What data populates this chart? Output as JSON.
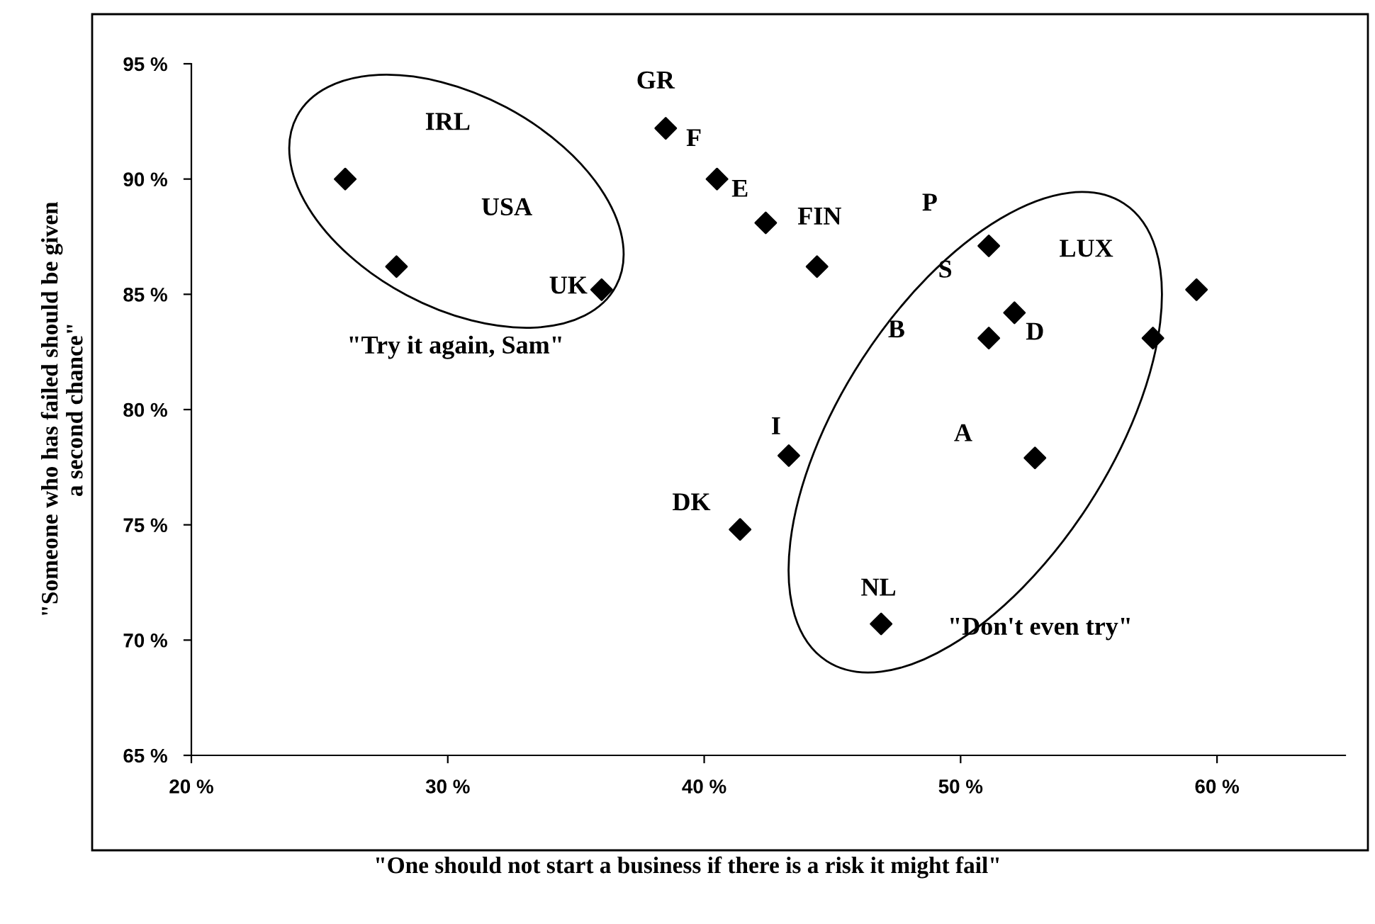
{
  "chart_data": {
    "type": "scatter",
    "xlabel": "\"One should not start a business if there is a risk it might fail\"",
    "ylabel": "\"Someone who has failed should be given\na second chance\"",
    "x": [
      26,
      28,
      36,
      38.5,
      40.5,
      42.4,
      44.4,
      51.1,
      52.1,
      51.1,
      59.2,
      57.5,
      52.9,
      43.3,
      41.4,
      46.9
    ],
    "values": [
      90,
      86.2,
      85.2,
      92.2,
      90,
      88.1,
      86.2,
      87.1,
      84.2,
      83.1,
      85.2,
      83.1,
      77.9,
      78,
      74.8,
      70.7
    ],
    "color": "#000000",
    "marker": "diamond",
    "grid": false,
    "legend": false,
    "xlim": [
      20,
      65
    ],
    "ylim": [
      65,
      95
    ],
    "xticks": [
      {
        "value": 20,
        "label": "20 %"
      },
      {
        "value": 30,
        "label": "30 %"
      },
      {
        "value": 40,
        "label": "40 %"
      },
      {
        "value": 50,
        "label": "50 %"
      },
      {
        "value": 60,
        "label": "60 %"
      }
    ],
    "yticks": [
      {
        "value": 65,
        "label": "65 %"
      },
      {
        "value": 70,
        "label": "70 %"
      },
      {
        "value": 75,
        "label": "75 %"
      },
      {
        "value": 80,
        "label": "80 %"
      },
      {
        "value": 85,
        "label": "85 %"
      },
      {
        "value": 90,
        "label": "90 %"
      },
      {
        "value": 95,
        "label": "95 %"
      }
    ],
    "annotations": [
      "IRL",
      "USA",
      "UK",
      "GR",
      "F",
      "E",
      "FIN",
      "P",
      "S",
      "B",
      "LUX",
      "D",
      "I",
      "A",
      "DK",
      "NL",
      "\"Try it again, Sam\"",
      "\"Don't even try\""
    ]
  }
}
